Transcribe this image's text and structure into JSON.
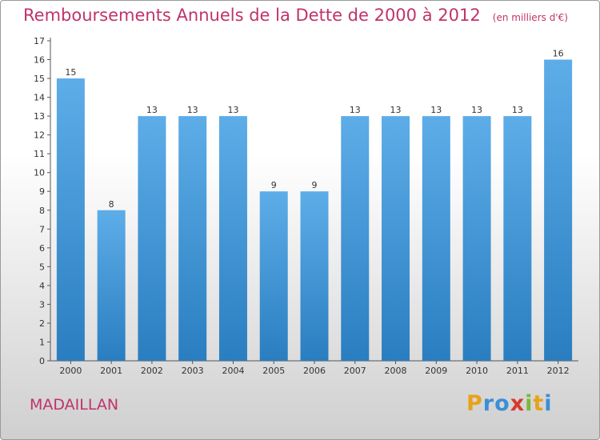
{
  "chart_data": {
    "type": "bar",
    "title": "Remboursements Annuels de la Dette de 2000 à 2012",
    "unit_note": "(en milliers d'€)",
    "categories": [
      "2000",
      "2001",
      "2002",
      "2003",
      "2004",
      "2005",
      "2006",
      "2007",
      "2008",
      "2009",
      "2010",
      "2011",
      "2012"
    ],
    "values": [
      15,
      8,
      13,
      13,
      13,
      9,
      9,
      13,
      13,
      13,
      13,
      13,
      16
    ],
    "ylim": [
      0,
      17
    ],
    "yticks": [
      0,
      1,
      2,
      3,
      4,
      5,
      6,
      7,
      8,
      9,
      10,
      11,
      12,
      13,
      14,
      15,
      16,
      17
    ],
    "grid": false,
    "legend": "none",
    "colors": {
      "bar_light": "#5dade8",
      "bar_dark": "#2a7ec0",
      "title": "#c0336a"
    }
  },
  "location": "MADAILLAN",
  "brand": {
    "letters": [
      "P",
      "r",
      "o",
      "x",
      "i",
      "t",
      "i"
    ],
    "colors": [
      "#e8a21a",
      "#3a8fd6",
      "#3a8fd6",
      "#d63a2a",
      "#7ab83a",
      "#e8a21a",
      "#3a8fd6"
    ]
  }
}
